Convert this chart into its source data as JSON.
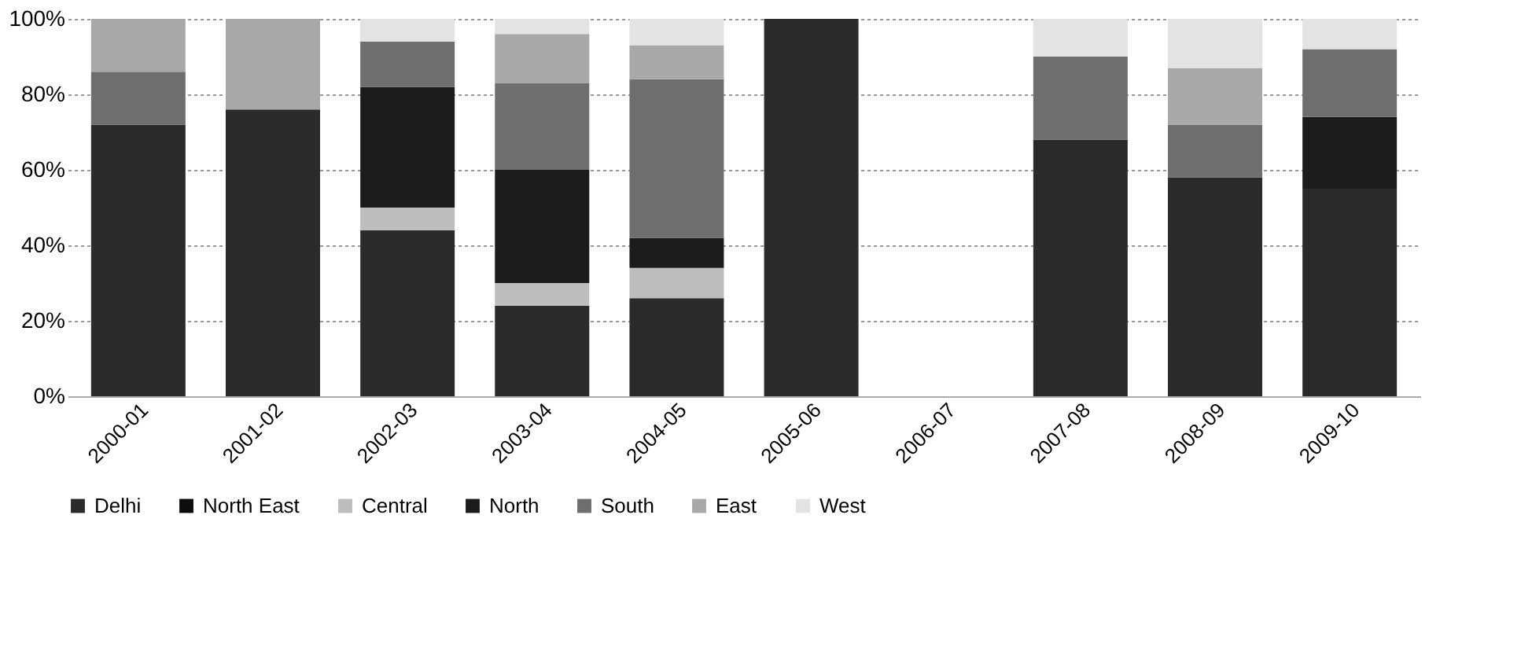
{
  "chart_data": {
    "type": "bar",
    "stacked": true,
    "categories": [
      "2000-01",
      "2001-02",
      "2002-03",
      "2003-04",
      "2004-05",
      "2005-06",
      "2006-07",
      "2007-08",
      "2008-09",
      "2009-10"
    ],
    "series": [
      {
        "name": "Delhi",
        "color": "#2b2b2b",
        "values": [
          72,
          76,
          44,
          24,
          26,
          100,
          null,
          68,
          58,
          55
        ]
      },
      {
        "name": "North East",
        "color": "#0d0d0d",
        "values": [
          null,
          null,
          null,
          null,
          null,
          null,
          null,
          null,
          null,
          null
        ]
      },
      {
        "name": "Central",
        "color": "#bdbdbd",
        "values": [
          null,
          null,
          6,
          6,
          8,
          null,
          null,
          null,
          null,
          null
        ]
      },
      {
        "name": "North",
        "color": "#1c1c1c",
        "values": [
          null,
          null,
          32,
          30,
          8,
          null,
          null,
          null,
          null,
          19
        ]
      },
      {
        "name": "South",
        "color": "#6e6e6e",
        "values": [
          14,
          null,
          12,
          23,
          42,
          null,
          null,
          22,
          14,
          18
        ]
      },
      {
        "name": "East",
        "color": "#a8a8a8",
        "values": [
          14,
          24,
          null,
          13,
          9,
          null,
          null,
          null,
          15,
          null
        ]
      },
      {
        "name": "West",
        "color": "#e3e3e3",
        "values": [
          null,
          null,
          6,
          4,
          7,
          null,
          null,
          10,
          13,
          8
        ]
      }
    ],
    "ylim": [
      0,
      100
    ],
    "yticks": [
      {
        "value": 0,
        "label": "0%"
      },
      {
        "value": 20,
        "label": "20%"
      },
      {
        "value": 40,
        "label": "40%"
      },
      {
        "value": 60,
        "label": "60%"
      },
      {
        "value": 80,
        "label": "80%"
      },
      {
        "value": 100,
        "label": "100%"
      }
    ],
    "grid": "y",
    "legend": "bottom"
  }
}
